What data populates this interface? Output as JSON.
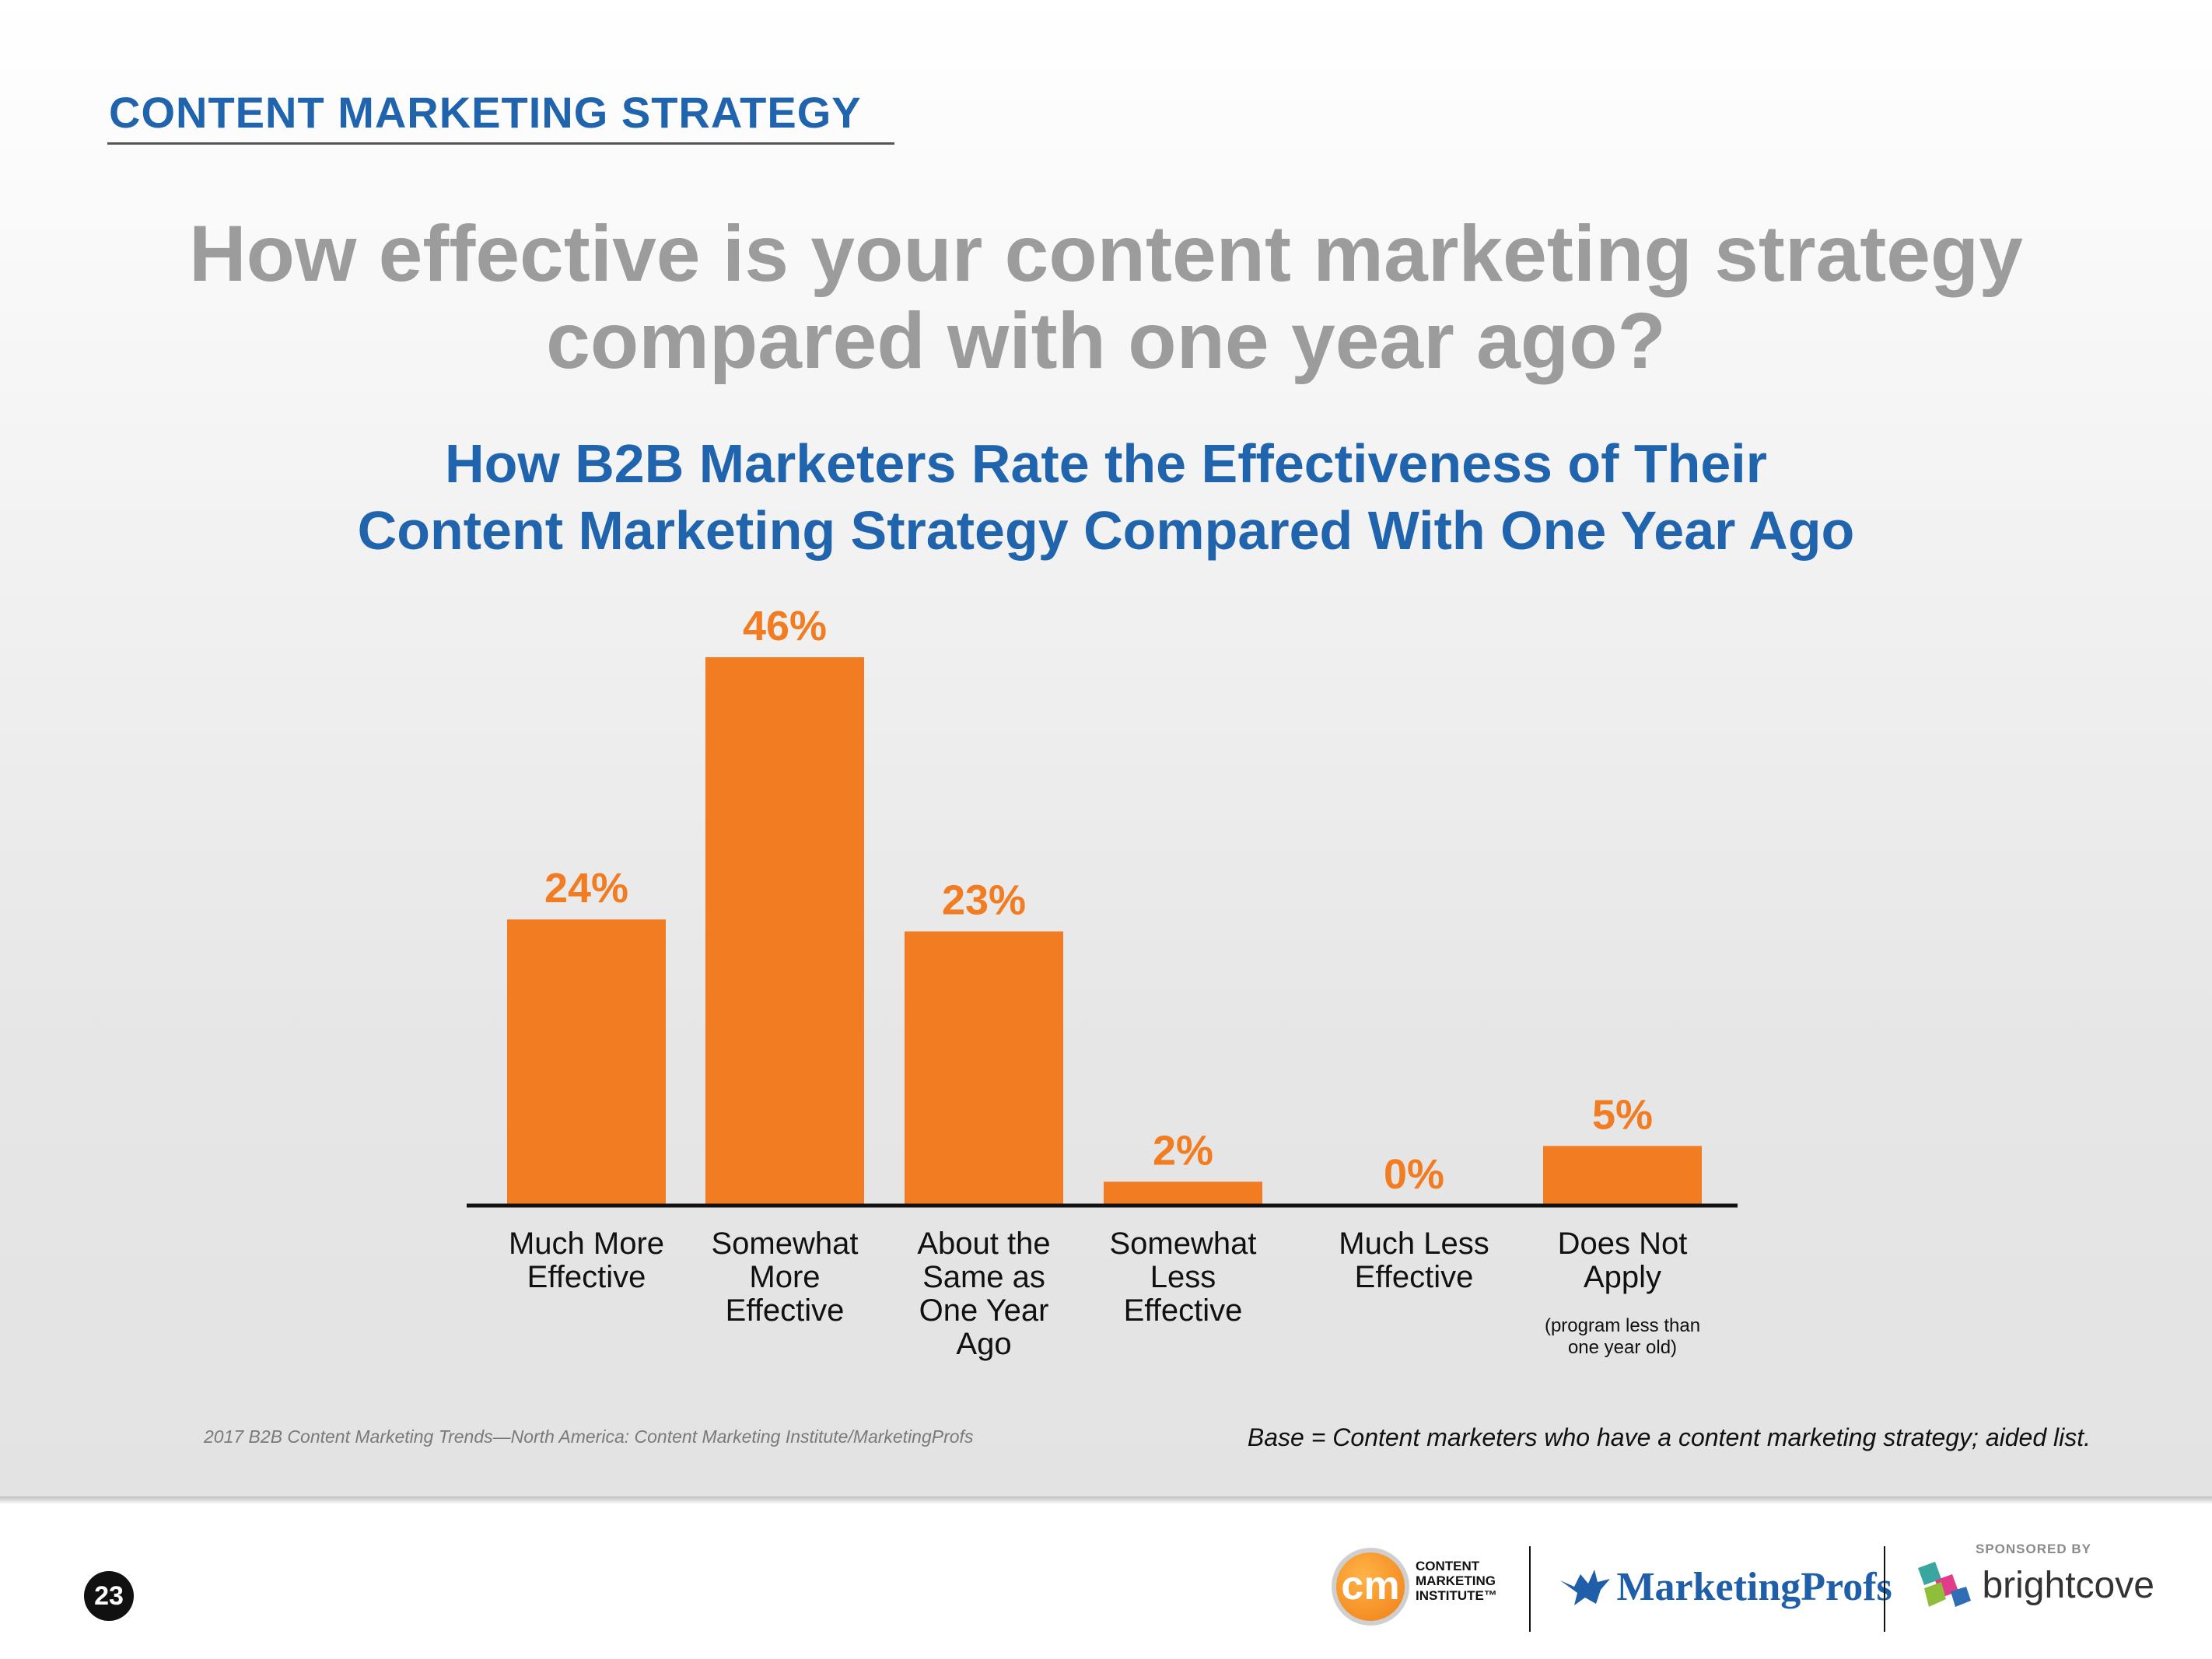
{
  "header": {
    "section_title": "CONTENT MARKETING STRATEGY",
    "question_line1": "How effective is your content marketing strategy",
    "question_line2": "compared with one year ago?"
  },
  "chart_data": {
    "type": "bar",
    "title_line1": "How B2B Marketers Rate the Effectiveness of Their",
    "title_line2": "Content Marketing Strategy Compared With One Year Ago",
    "categories": [
      [
        "Much More",
        "Effective"
      ],
      [
        "Somewhat",
        "More",
        "Effective"
      ],
      [
        "About the",
        "Same as",
        "One Year",
        "Ago"
      ],
      [
        "Somewhat",
        "Less",
        "Effective"
      ],
      [
        "Much Less",
        "Effective"
      ],
      [
        "Does Not",
        "Apply"
      ]
    ],
    "category_notes": [
      "",
      "",
      "",
      "",
      "",
      "(program less than|one year old)"
    ],
    "values": [
      24,
      46,
      23,
      2,
      0,
      5
    ],
    "value_labels": [
      "24%",
      "46%",
      "23%",
      "2%",
      "0%",
      "5%"
    ],
    "ylim": [
      0,
      46
    ],
    "xlabel": "",
    "ylabel": "",
    "grid": false,
    "bar_color": "#f27c21",
    "label_color": "#f27c21"
  },
  "footnotes": {
    "source": "2017 B2B Content Marketing Trends—North America: Content Marketing Institute/MarketingProfs",
    "base": "Base = Content marketers who have a content marketing strategy; aided list."
  },
  "footer": {
    "page_number": "23",
    "cmi_badge": "cm",
    "cmi_line1": "CONTENT",
    "cmi_line2": "MARKETING",
    "cmi_line3": "INSTITUTE™",
    "mp_name": "MarketingProfs",
    "sponsored_label": "SPONSORED BY",
    "bc_name": "brightcove"
  }
}
